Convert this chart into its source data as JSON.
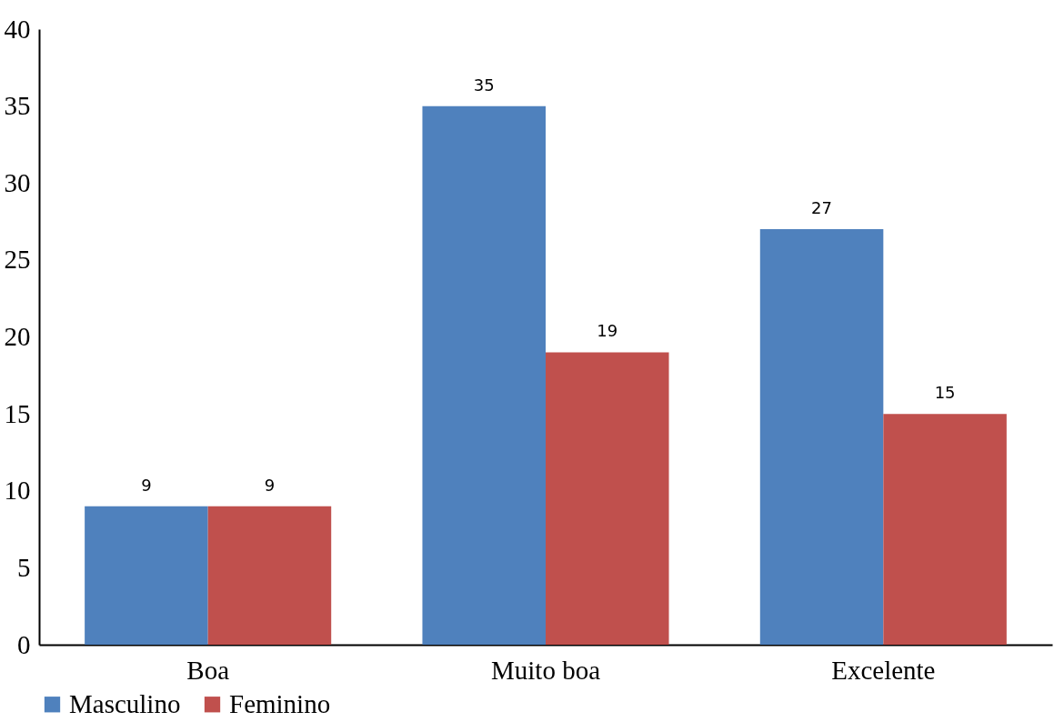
{
  "chart_data": {
    "type": "bar",
    "categories": [
      "Boa",
      "Muito boa",
      "Excelente"
    ],
    "series": [
      {
        "name": "Masculino",
        "color": "#4f81bd",
        "values": [
          9,
          35,
          27
        ]
      },
      {
        "name": "Feminino",
        "color": "#c0504d",
        "values": [
          9,
          19,
          15
        ]
      }
    ],
    "ylim": [
      0,
      40
    ],
    "yticks": [
      0,
      5,
      10,
      15,
      20,
      25,
      30,
      35,
      40
    ],
    "data_labels": true,
    "legend": "bottom"
  }
}
